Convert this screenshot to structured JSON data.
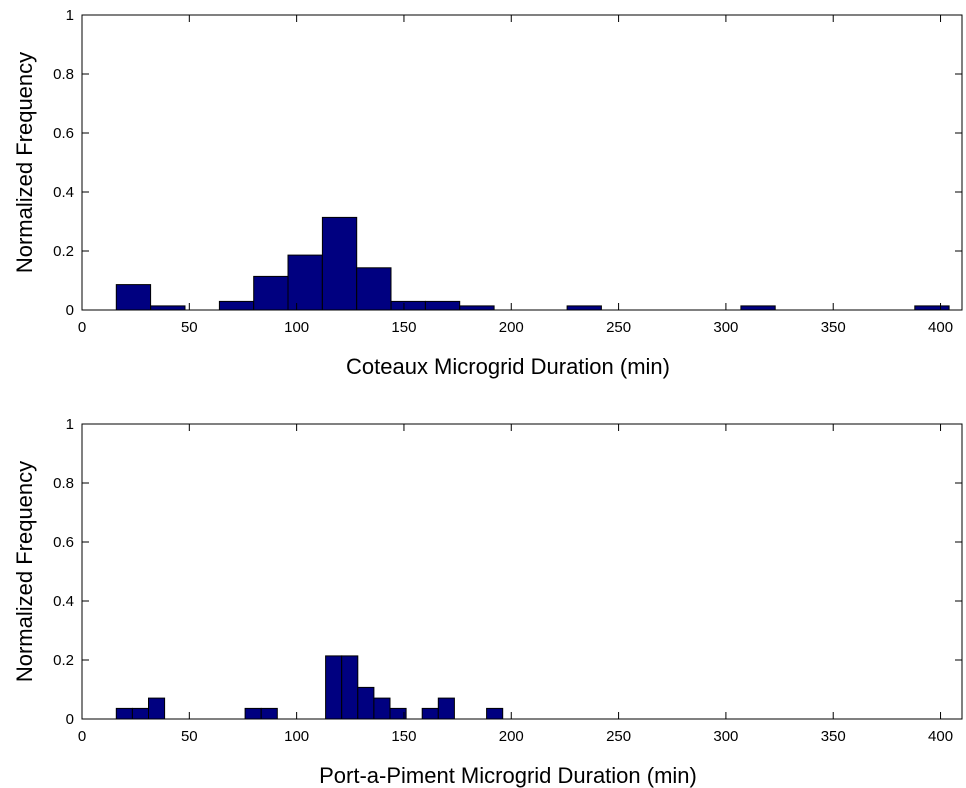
{
  "chart_data": [
    {
      "type": "bar",
      "title": "",
      "xlabel": "Coteaux Microgrid Duration (min)",
      "ylabel": "Normalized Frequency",
      "xlim": [
        0,
        410
      ],
      "ylim": [
        0,
        1
      ],
      "xticks": [
        0,
        50,
        100,
        150,
        200,
        250,
        300,
        350,
        400
      ],
      "yticks": [
        0,
        0.2,
        0.4,
        0.6,
        0.8,
        1
      ],
      "ytick_labels": [
        "0",
        "0.2",
        "0.4",
        "0.6",
        "0.8",
        "1"
      ],
      "grid": false,
      "bar_color": "#000080",
      "bins": [
        {
          "x0": 16,
          "x1": 32,
          "value": 0.086
        },
        {
          "x0": 32,
          "x1": 48,
          "value": 0.014
        },
        {
          "x0": 64,
          "x1": 80,
          "value": 0.029
        },
        {
          "x0": 80,
          "x1": 96,
          "value": 0.114
        },
        {
          "x0": 96,
          "x1": 112,
          "value": 0.186
        },
        {
          "x0": 112,
          "x1": 128,
          "value": 0.314
        },
        {
          "x0": 128,
          "x1": 144,
          "value": 0.143
        },
        {
          "x0": 144,
          "x1": 160,
          "value": 0.029
        },
        {
          "x0": 160,
          "x1": 176,
          "value": 0.029
        },
        {
          "x0": 176,
          "x1": 192,
          "value": 0.014
        },
        {
          "x0": 226,
          "x1": 242,
          "value": 0.014
        },
        {
          "x0": 307,
          "x1": 323,
          "value": 0.014
        },
        {
          "x0": 388,
          "x1": 404,
          "value": 0.014
        }
      ]
    },
    {
      "type": "bar",
      "title": "",
      "xlabel": "Port-a-Piment Microgrid Duration (min)",
      "ylabel": "Normalized Frequency",
      "xlim": [
        0,
        410
      ],
      "ylim": [
        0,
        1
      ],
      "xticks": [
        0,
        50,
        100,
        150,
        200,
        250,
        300,
        350,
        400
      ],
      "yticks": [
        0,
        0.2,
        0.4,
        0.6,
        0.8,
        1
      ],
      "ytick_labels": [
        "0",
        "0.2",
        "0.4",
        "0.6",
        "0.8",
        "1"
      ],
      "grid": false,
      "bar_color": "#000080",
      "bins": [
        {
          "x0": 16,
          "x1": 23.5,
          "value": 0.036
        },
        {
          "x0": 23.5,
          "x1": 31,
          "value": 0.036
        },
        {
          "x0": 31,
          "x1": 38.5,
          "value": 0.071
        },
        {
          "x0": 76,
          "x1": 83.5,
          "value": 0.036
        },
        {
          "x0": 83.5,
          "x1": 91,
          "value": 0.036
        },
        {
          "x0": 113.5,
          "x1": 121,
          "value": 0.214
        },
        {
          "x0": 121,
          "x1": 128.5,
          "value": 0.214
        },
        {
          "x0": 128.5,
          "x1": 136,
          "value": 0.107
        },
        {
          "x0": 136,
          "x1": 143.5,
          "value": 0.071
        },
        {
          "x0": 143.5,
          "x1": 151,
          "value": 0.036
        },
        {
          "x0": 158.5,
          "x1": 166,
          "value": 0.036
        },
        {
          "x0": 166,
          "x1": 173.5,
          "value": 0.071
        },
        {
          "x0": 188.5,
          "x1": 196,
          "value": 0.036
        }
      ]
    }
  ]
}
